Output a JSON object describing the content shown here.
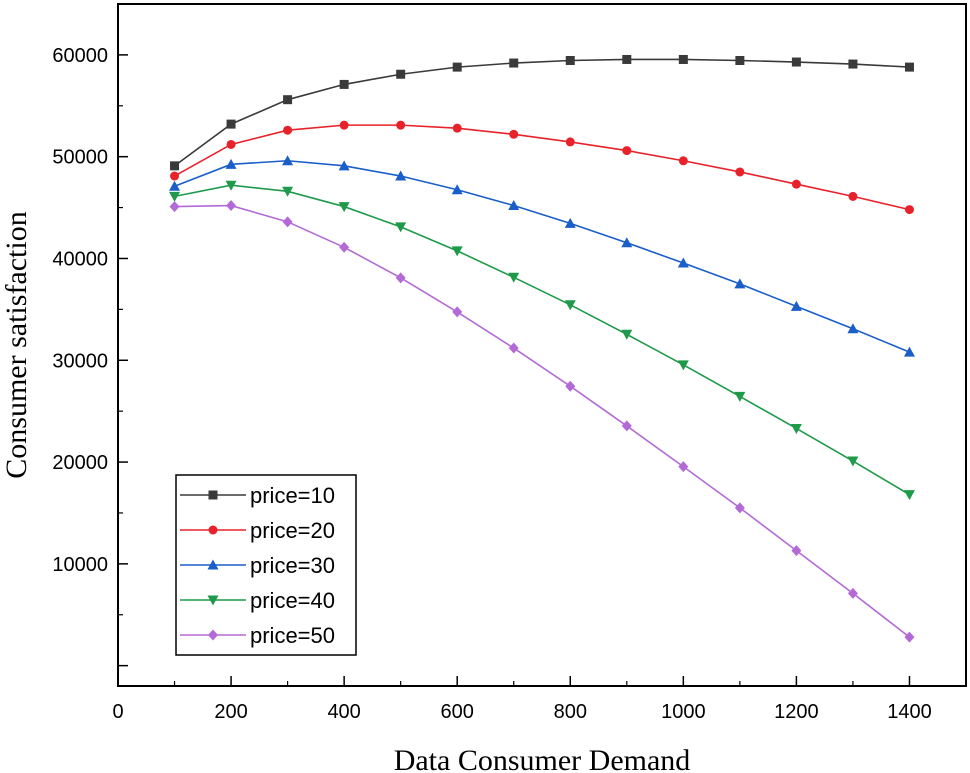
{
  "chart_data": {
    "type": "line",
    "title": "",
    "xlabel": "Data Consumer Demand",
    "ylabel": "Consumer satisfaction",
    "xlim": [
      0,
      1500
    ],
    "ylim": [
      -2000,
      65000
    ],
    "x_ticks": [
      0,
      200,
      400,
      600,
      800,
      1000,
      1200,
      1400
    ],
    "x_tick_labels": [
      "0",
      "200",
      "400",
      "600",
      "800",
      "1000",
      "1200",
      "1400"
    ],
    "y_ticks": [
      10000,
      20000,
      30000,
      40000,
      50000,
      60000
    ],
    "y_tick_labels": [
      "10000",
      "20000",
      "30000",
      "40000",
      "50000",
      "60000"
    ],
    "grid": false,
    "legend_position": "bottom-left",
    "x": [
      100,
      200,
      300,
      400,
      500,
      600,
      700,
      800,
      900,
      1000,
      1100,
      1200,
      1300,
      1400
    ],
    "series": [
      {
        "name": "price=10",
        "color": "#3a3a3a",
        "marker": "square",
        "values": [
          49100,
          53200,
          55600,
          57100,
          58100,
          58800,
          59200,
          59450,
          59550,
          59550,
          59450,
          59300,
          59100,
          58800
        ]
      },
      {
        "name": "price=20",
        "color": "#e8222a",
        "marker": "circle",
        "values": [
          48100,
          51200,
          52600,
          53100,
          53100,
          52800,
          52200,
          51450,
          50600,
          49600,
          48500,
          47300,
          46100,
          44800
        ]
      },
      {
        "name": "price=30",
        "color": "#1a5ec9",
        "marker": "triangle-up",
        "values": [
          47100,
          49250,
          49600,
          49100,
          48100,
          46750,
          45200,
          43450,
          41550,
          39550,
          37500,
          35300,
          33100,
          30800
        ]
      },
      {
        "name": "price=40",
        "color": "#1e9a4a",
        "marker": "triangle-down",
        "values": [
          46100,
          47200,
          46600,
          45100,
          43100,
          40750,
          38150,
          35450,
          32550,
          29550,
          26450,
          23300,
          20100,
          16800
        ]
      },
      {
        "name": "price=50",
        "color": "#b36ad6",
        "marker": "diamond",
        "values": [
          45100,
          45200,
          43600,
          41100,
          38100,
          34750,
          31200,
          27450,
          23550,
          19550,
          15500,
          11300,
          7100,
          2800
        ]
      }
    ]
  }
}
